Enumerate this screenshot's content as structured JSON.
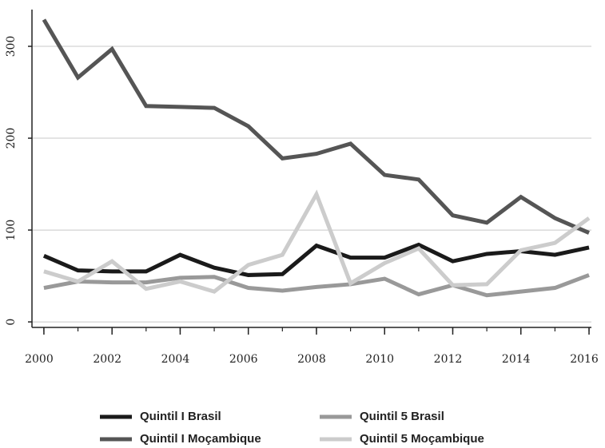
{
  "chart_data": {
    "type": "line",
    "x": [
      2000,
      2001,
      2002,
      2003,
      2004,
      2005,
      2006,
      2007,
      2008,
      2009,
      2010,
      2011,
      2012,
      2013,
      2014,
      2015,
      2016
    ],
    "series": [
      {
        "name": "Quintil I Brasil",
        "color": "#1a1a1a",
        "values": [
          72,
          56,
          55,
          55,
          73,
          59,
          51,
          52,
          83,
          70,
          70,
          84,
          66,
          74,
          77,
          73,
          81
        ]
      },
      {
        "name": "Quintil 5 Brasil",
        "color": "#999999",
        "values": [
          37,
          44,
          43,
          43,
          48,
          49,
          37,
          34,
          38,
          41,
          47,
          30,
          40,
          29,
          33,
          37,
          51
        ]
      },
      {
        "name": "Quintil I Moçambique",
        "color": "#555555",
        "values": [
          329,
          266,
          297,
          235,
          234,
          233,
          213,
          178,
          183,
          194,
          160,
          155,
          116,
          108,
          136,
          113,
          97
        ]
      },
      {
        "name": "Quintil 5 Moçambique",
        "color": "#cccccc",
        "values": [
          55,
          44,
          66,
          36,
          44,
          33,
          62,
          73,
          139,
          42,
          64,
          80,
          40,
          41,
          78,
          86,
          113
        ]
      }
    ],
    "xlim": [
      1999.65,
      2016.07
    ],
    "xticks": [
      2000,
      2002,
      2004,
      2006,
      2008,
      2010,
      2012,
      2014,
      2016
    ],
    "ylim": [
      -6,
      340
    ],
    "yticks": [
      0,
      100,
      200,
      300
    ],
    "grid": true
  }
}
